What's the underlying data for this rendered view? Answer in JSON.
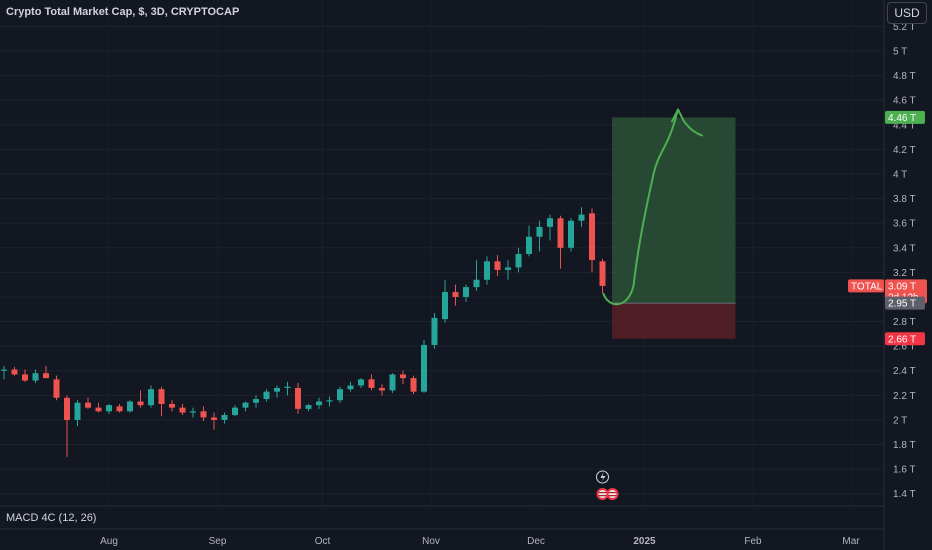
{
  "header": {
    "title": "Crypto Total Market Cap, $, 3D, CRYPTOCAP",
    "currency_button": "USD"
  },
  "indicator": {
    "label": "MACD 4C (12, 26)"
  },
  "price_tags": {
    "target": "4.46 T",
    "symbol_label": "TOTAL",
    "current": "3.09 T",
    "countdown": "2d 12h",
    "entry": "2.95 T",
    "stop": "2.66 T"
  },
  "colors": {
    "background": "#131722",
    "up": "#26a69a",
    "down": "#ef5350",
    "target_zone": "#2f5a3a",
    "stop_zone": "#5a1f26",
    "drawing": "#4caf50",
    "target_tag": "#4caf50",
    "stop_tag": "#f23645",
    "symbol_tag": "#ef5350"
  },
  "icons": [
    "lightning-icon",
    "us-flag-icon"
  ],
  "chart_data": {
    "type": "candlestick",
    "y_unit": "T",
    "ylim": [
      1.3,
      5.35
    ],
    "y_ticks": [
      "1.4 T",
      "1.6 T",
      "1.8 T",
      "2 T",
      "2.2 T",
      "2.4 T",
      "2.6 T",
      "2.8 T",
      "3 T",
      "3.2 T",
      "3.4 T",
      "3.6 T",
      "3.8 T",
      "4 T",
      "4.2 T",
      "4.4 T",
      "4.6 T",
      "4.8 T",
      "5 T",
      "5.2 T"
    ],
    "y_tick_values": [
      1.4,
      1.6,
      1.8,
      2.0,
      2.2,
      2.4,
      2.6,
      2.8,
      3.0,
      3.2,
      3.4,
      3.6,
      3.8,
      4.0,
      4.2,
      4.4,
      4.6,
      4.8,
      5.0,
      5.2
    ],
    "x_ticks": [
      "Aug",
      "Sep",
      "Oct",
      "Nov",
      "Dec",
      "2025",
      "Feb",
      "Mar"
    ],
    "x_tick_dates": [
      "2024-08-01",
      "2024-09-01",
      "2024-10-01",
      "2024-11-01",
      "2024-12-01",
      "2025-01-01",
      "2025-02-01",
      "2025-03-01"
    ],
    "x_tick_bold": [
      false,
      false,
      false,
      false,
      false,
      true,
      false,
      false
    ],
    "first_candle_date": "2024-07-02",
    "candle_interval_days": 3,
    "ohlc": [
      [
        2.4,
        2.44,
        2.33,
        2.41
      ],
      [
        2.41,
        2.43,
        2.36,
        2.37
      ],
      [
        2.37,
        2.41,
        2.31,
        2.32
      ],
      [
        2.32,
        2.41,
        2.3,
        2.38
      ],
      [
        2.38,
        2.44,
        2.34,
        2.34
      ],
      [
        2.33,
        2.36,
        2.16,
        2.18
      ],
      [
        2.18,
        2.2,
        1.7,
        2.0
      ],
      [
        2.0,
        2.16,
        1.95,
        2.14
      ],
      [
        2.14,
        2.18,
        2.09,
        2.1
      ],
      [
        2.1,
        2.14,
        2.06,
        2.07
      ],
      [
        2.07,
        2.13,
        2.05,
        2.12
      ],
      [
        2.11,
        2.13,
        2.06,
        2.07
      ],
      [
        2.07,
        2.16,
        2.06,
        2.15
      ],
      [
        2.15,
        2.24,
        2.1,
        2.12
      ],
      [
        2.12,
        2.28,
        2.1,
        2.25
      ],
      [
        2.25,
        2.27,
        2.03,
        2.13
      ],
      [
        2.13,
        2.16,
        2.07,
        2.1
      ],
      [
        2.1,
        2.13,
        2.04,
        2.06
      ],
      [
        2.06,
        2.1,
        2.02,
        2.07
      ],
      [
        2.07,
        2.11,
        1.99,
        2.02
      ],
      [
        2.02,
        2.06,
        1.92,
        2.0
      ],
      [
        2.0,
        2.06,
        1.97,
        2.04
      ],
      [
        2.04,
        2.12,
        2.03,
        2.1
      ],
      [
        2.1,
        2.15,
        2.07,
        2.14
      ],
      [
        2.14,
        2.2,
        2.1,
        2.17
      ],
      [
        2.17,
        2.25,
        2.15,
        2.23
      ],
      [
        2.23,
        2.28,
        2.18,
        2.26
      ],
      [
        2.26,
        2.31,
        2.2,
        2.27
      ],
      [
        2.26,
        2.3,
        2.05,
        2.09
      ],
      [
        2.09,
        2.13,
        2.07,
        2.12
      ],
      [
        2.12,
        2.18,
        2.09,
        2.15
      ],
      [
        2.15,
        2.19,
        2.11,
        2.16
      ],
      [
        2.16,
        2.27,
        2.14,
        2.25
      ],
      [
        2.25,
        2.31,
        2.23,
        2.28
      ],
      [
        2.28,
        2.34,
        2.26,
        2.33
      ],
      [
        2.33,
        2.37,
        2.24,
        2.26
      ],
      [
        2.26,
        2.29,
        2.2,
        2.24
      ],
      [
        2.24,
        2.38,
        2.22,
        2.37
      ],
      [
        2.37,
        2.4,
        2.29,
        2.34
      ],
      [
        2.34,
        2.36,
        2.21,
        2.23
      ],
      [
        2.23,
        2.65,
        2.22,
        2.61
      ],
      [
        2.61,
        2.87,
        2.58,
        2.83
      ],
      [
        2.82,
        3.14,
        2.79,
        3.04
      ],
      [
        3.04,
        3.1,
        2.93,
        3.0
      ],
      [
        3.0,
        3.1,
        2.96,
        3.08
      ],
      [
        3.08,
        3.3,
        3.05,
        3.14
      ],
      [
        3.14,
        3.33,
        3.1,
        3.29
      ],
      [
        3.29,
        3.34,
        3.17,
        3.22
      ],
      [
        3.22,
        3.3,
        3.14,
        3.24
      ],
      [
        3.24,
        3.4,
        3.2,
        3.35
      ],
      [
        3.35,
        3.58,
        3.33,
        3.49
      ],
      [
        3.49,
        3.62,
        3.37,
        3.57
      ],
      [
        3.57,
        3.67,
        3.46,
        3.64
      ],
      [
        3.64,
        3.66,
        3.23,
        3.4
      ],
      [
        3.4,
        3.64,
        3.37,
        3.62
      ],
      [
        3.62,
        3.73,
        3.57,
        3.67
      ],
      [
        3.68,
        3.72,
        3.2,
        3.3
      ],
      [
        3.29,
        3.31,
        3.03,
        3.09
      ]
    ],
    "position": {
      "type": "long",
      "entry": 2.95,
      "target": 4.46,
      "stop": 2.66,
      "current_price": 3.09,
      "start_candle_index": 58,
      "end_date": "2025-01-27"
    }
  }
}
